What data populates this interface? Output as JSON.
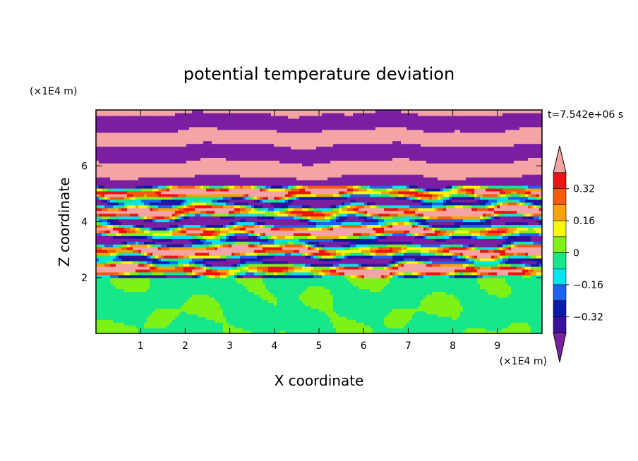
{
  "chart_data": {
    "type": "heatmap",
    "title": "potential temperature deviation",
    "xlabel": "X coordinate",
    "ylabel": "Z coordinate",
    "x_unit": "(×1E4 m)",
    "y_unit": "(×1E4 m)",
    "time_label": "t=7.542e+06 s",
    "xlim": [
      0,
      10
    ],
    "ylim": [
      0,
      8
    ],
    "x_ticks": [
      1,
      2,
      3,
      4,
      5,
      6,
      7,
      8,
      9
    ],
    "y_ticks": [
      2,
      4,
      6
    ],
    "colorbar": {
      "levels": [
        -0.4,
        -0.32,
        -0.24,
        -0.16,
        -0.08,
        0,
        0.08,
        0.16,
        0.24,
        0.32,
        0.4
      ],
      "labels": [
        "0.32",
        "0.16",
        "0",
        "−0.16",
        "−0.32"
      ],
      "label_values": [
        0.32,
        0.16,
        0,
        -0.16,
        -0.32
      ],
      "below_color": "#7b1fa2",
      "above_color": "#f4a4a4",
      "colors": [
        "#3a0f9e",
        "#0a1aa8",
        "#1d62f0",
        "#00e5ee",
        "#17e68a",
        "#7ef216",
        "#f7f70a",
        "#f9a10a",
        "#f75a0a",
        "#ee1313"
      ]
    },
    "regions": [
      {
        "z_range": [
          0,
          2.0
        ],
        "description_value": "values near 0 to 0.08 (green)"
      },
      {
        "z_range": [
          2.0,
          5.2
        ],
        "description_value": "mixed layered values -0.4 to 0.4"
      },
      {
        "z_range": [
          5.2,
          8.0
        ],
        "description_value": "alternating bands beyond ±0.4"
      }
    ]
  }
}
